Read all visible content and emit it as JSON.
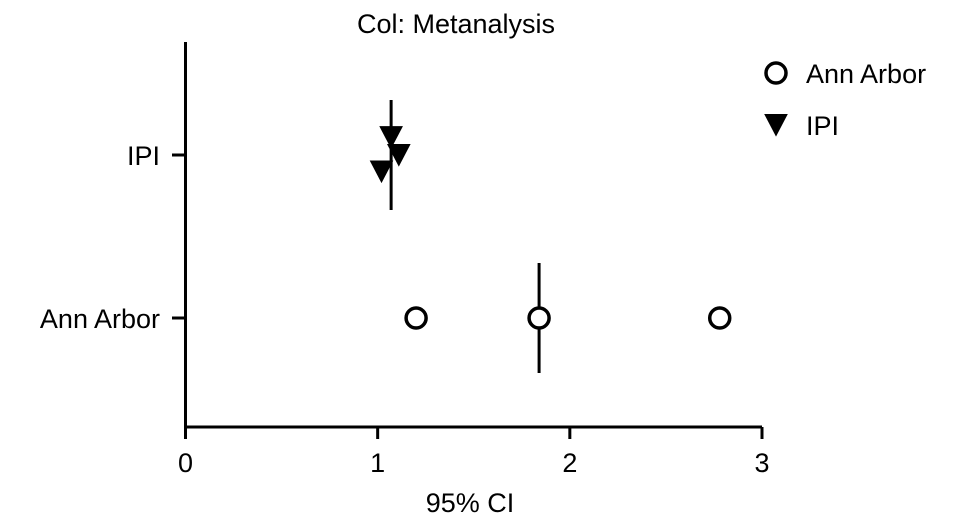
{
  "chart_data": {
    "type": "scatter",
    "title": "Col: Metanalysis",
    "xlabel": "95% CI",
    "ylabel": "",
    "xlim": [
      0,
      3
    ],
    "xticks": [
      0,
      1,
      2,
      3
    ],
    "categories": [
      "IPI",
      "Ann Arbor"
    ],
    "grid": false,
    "legend_position": "top-right",
    "series": [
      {
        "name": "Ann Arbor",
        "marker": "open-circle",
        "category": "Ann Arbor",
        "points": [
          {
            "x": 1.2,
            "offset": 0
          },
          {
            "x": 1.84,
            "offset": 0
          },
          {
            "x": 2.78,
            "offset": 0
          }
        ],
        "median": 1.84
      },
      {
        "name": "IPI",
        "marker": "filled-triangle-down",
        "category": "IPI",
        "points": [
          {
            "x": 1.07,
            "offset": 0.27
          },
          {
            "x": 1.11,
            "offset": 0
          },
          {
            "x": 1.02,
            "offset": -0.25
          }
        ],
        "median": 1.07
      }
    ]
  }
}
